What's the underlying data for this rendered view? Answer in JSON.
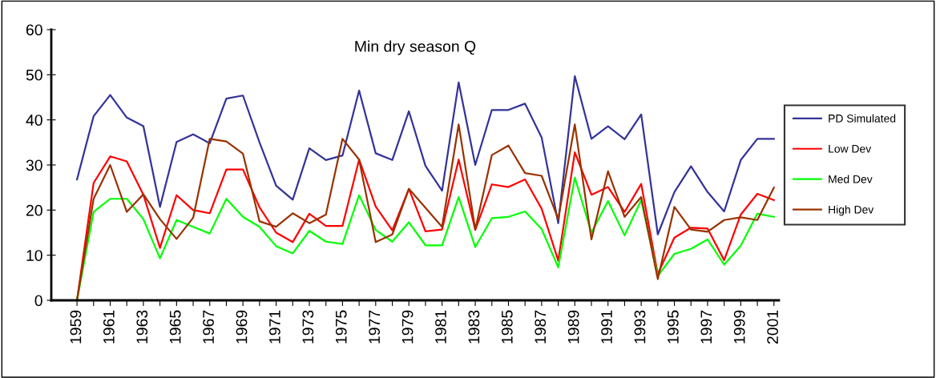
{
  "chart_data": {
    "type": "line",
    "title": "Min dry season Q",
    "categories": [
      "1959",
      null,
      "1961",
      null,
      "1963",
      null,
      "1965",
      null,
      "1967",
      null,
      "1969",
      null,
      "1971",
      null,
      "1973",
      null,
      "1975",
      null,
      "1977",
      null,
      "1979",
      null,
      "1981",
      null,
      "1983",
      null,
      "1985",
      null,
      "1987",
      null,
      "1989",
      null,
      "1991",
      null,
      "1993",
      null,
      "1995",
      null,
      "1997",
      null,
      "1999",
      null,
      "2001"
    ],
    "series": [
      {
        "name": "PD Simulated",
        "color": "#333399",
        "values": [
          26.8,
          40.8,
          45.5,
          40.5,
          38.6,
          20.7,
          35.1,
          36.8,
          34.8,
          44.7,
          45.4,
          35,
          25.4,
          22.3,
          33.7,
          31.1,
          32.1,
          46.5,
          32.6,
          31.1,
          41.9,
          29.8,
          24.3,
          48.3,
          30,
          42.2,
          42.2,
          43.6,
          36.1,
          17.1,
          49.7,
          35.8,
          38.6,
          35.7,
          41.2,
          14.6,
          24,
          29.7,
          24,
          19.7,
          31.1,
          35.8,
          35.8
        ]
      },
      {
        "name": "Low Dev",
        "color": "#ff0000",
        "values": [
          0,
          26,
          31.9,
          30.8,
          23.4,
          11.6,
          23.3,
          20,
          19.3,
          29,
          29,
          20.6,
          15,
          12.9,
          19.2,
          16.5,
          16.5,
          31.2,
          20.8,
          15.5,
          24.7,
          15.3,
          15.7,
          31.2,
          15.6,
          25.7,
          25.1,
          26.8,
          20.3,
          8.8,
          32.8,
          23.4,
          25.1,
          19.6,
          25.8,
          5.8,
          13.9,
          16.1,
          15.9,
          8.9,
          19,
          23.6,
          22.2
        ]
      },
      {
        "name": "Med Dev",
        "color": "#00ff00",
        "values": [
          0,
          19.6,
          22.5,
          22.5,
          18,
          9.3,
          17.8,
          16.3,
          14.8,
          22.5,
          18.5,
          16.3,
          12,
          10.4,
          15.4,
          13,
          12.5,
          23.3,
          15.6,
          13,
          17.3,
          12.2,
          12.2,
          22.9,
          11.8,
          18.2,
          18.5,
          19.7,
          15.8,
          7.3,
          27.2,
          15,
          22,
          14.4,
          22.2,
          5.4,
          10.3,
          11.4,
          13.5,
          7.9,
          12.1,
          19.2,
          18.5
        ]
      },
      {
        "name": "High Dev",
        "color": "#993300",
        "values": [
          0,
          22.5,
          30,
          19.6,
          23.5,
          18,
          13.6,
          18.3,
          35.8,
          35.2,
          32.5,
          17.5,
          16.3,
          19.3,
          17.1,
          19,
          35.8,
          31.2,
          12.9,
          14.6,
          24.7,
          20.5,
          16.3,
          39,
          15.7,
          32.2,
          34.3,
          28.2,
          27.6,
          18,
          39,
          13.5,
          28.6,
          18.5,
          22.9,
          4.7,
          20.7,
          15.7,
          15.2,
          17.8,
          18.4,
          17.8,
          25
        ]
      }
    ],
    "ylim": [
      0,
      60
    ],
    "yticks": [
      0,
      10,
      20,
      30,
      40,
      50,
      60
    ],
    "legend": "right",
    "marker": "none",
    "line_style": "solid"
  }
}
